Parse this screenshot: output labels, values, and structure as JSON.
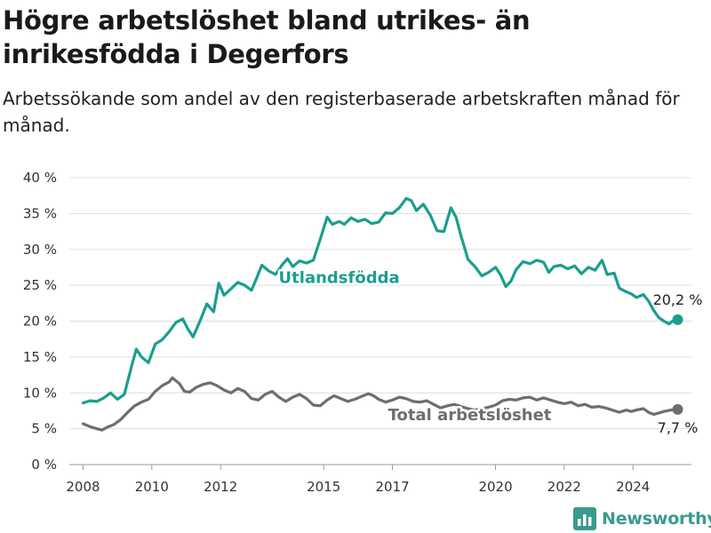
{
  "header": {
    "title": "Högre arbetslöshet bland utrikes- än inrikesfödda i Degerfors",
    "subtitle": "Arbetssökande som andel av den registerbaserade arbetskraften månad för månad."
  },
  "brand": {
    "name": "Newsworthy",
    "icon": "bar-chart-logo-icon",
    "color": "#3a9a8e"
  },
  "chart_data": {
    "type": "line",
    "title": "",
    "xlabel": "",
    "ylabel": "",
    "ylim": [
      0,
      40
    ],
    "xlim": [
      2007.6,
      2025.7
    ],
    "grid": true,
    "y_ticks": [
      0,
      5,
      10,
      15,
      20,
      25,
      30,
      35,
      40
    ],
    "y_tick_labels": [
      "0 %",
      "5 %",
      "10 %",
      "15 %",
      "20 %",
      "25 %",
      "30 %",
      "35 %",
      "40 %"
    ],
    "x_ticks": [
      2008,
      2010,
      2012,
      2015,
      2017,
      2020,
      2022,
      2024
    ],
    "x_tick_labels": [
      "2008",
      "2010",
      "2012",
      "2015",
      "2017",
      "2020",
      "2022",
      "2024"
    ],
    "series": [
      {
        "name": "Utlandsfödda",
        "color": "#1a9e8f",
        "end_label": "20,2 %",
        "points": [
          [
            2008.0,
            8.6
          ],
          [
            2008.2,
            8.9
          ],
          [
            2008.4,
            8.8
          ],
          [
            2008.6,
            9.3
          ],
          [
            2008.8,
            10.0
          ],
          [
            2009.0,
            9.1
          ],
          [
            2009.2,
            9.8
          ],
          [
            2009.4,
            13.5
          ],
          [
            2009.55,
            16.1
          ],
          [
            2009.7,
            15.0
          ],
          [
            2009.9,
            14.2
          ],
          [
            2010.1,
            16.8
          ],
          [
            2010.3,
            17.4
          ],
          [
            2010.5,
            18.5
          ],
          [
            2010.7,
            19.8
          ],
          [
            2010.9,
            20.3
          ],
          [
            2011.05,
            18.9
          ],
          [
            2011.2,
            17.8
          ],
          [
            2011.4,
            20.0
          ],
          [
            2011.6,
            22.4
          ],
          [
            2011.8,
            21.3
          ],
          [
            2011.95,
            25.3
          ],
          [
            2012.1,
            23.6
          ],
          [
            2012.3,
            24.5
          ],
          [
            2012.5,
            25.4
          ],
          [
            2012.7,
            25.0
          ],
          [
            2012.9,
            24.3
          ],
          [
            2013.05,
            26.0
          ],
          [
            2013.2,
            27.8
          ],
          [
            2013.4,
            27.0
          ],
          [
            2013.6,
            26.5
          ],
          [
            2013.8,
            27.9
          ],
          [
            2013.95,
            28.7
          ],
          [
            2014.1,
            27.6
          ],
          [
            2014.3,
            28.4
          ],
          [
            2014.5,
            28.1
          ],
          [
            2014.7,
            28.5
          ],
          [
            2014.9,
            31.4
          ],
          [
            2015.1,
            34.5
          ],
          [
            2015.25,
            33.5
          ],
          [
            2015.45,
            33.9
          ],
          [
            2015.6,
            33.5
          ],
          [
            2015.8,
            34.4
          ],
          [
            2016.0,
            33.9
          ],
          [
            2016.2,
            34.2
          ],
          [
            2016.4,
            33.6
          ],
          [
            2016.6,
            33.8
          ],
          [
            2016.8,
            35.1
          ],
          [
            2017.0,
            35.0
          ],
          [
            2017.2,
            35.8
          ],
          [
            2017.4,
            37.1
          ],
          [
            2017.55,
            36.8
          ],
          [
            2017.7,
            35.4
          ],
          [
            2017.9,
            36.3
          ],
          [
            2018.1,
            34.8
          ],
          [
            2018.3,
            32.6
          ],
          [
            2018.5,
            32.5
          ],
          [
            2018.7,
            35.8
          ],
          [
            2018.85,
            34.5
          ],
          [
            2019.0,
            31.8
          ],
          [
            2019.2,
            28.6
          ],
          [
            2019.4,
            27.6
          ],
          [
            2019.6,
            26.3
          ],
          [
            2019.8,
            26.8
          ],
          [
            2020.0,
            27.5
          ],
          [
            2020.15,
            26.4
          ],
          [
            2020.3,
            24.8
          ],
          [
            2020.45,
            25.6
          ],
          [
            2020.6,
            27.2
          ],
          [
            2020.8,
            28.3
          ],
          [
            2021.0,
            28.0
          ],
          [
            2021.2,
            28.5
          ],
          [
            2021.4,
            28.2
          ],
          [
            2021.55,
            26.8
          ],
          [
            2021.7,
            27.6
          ],
          [
            2021.9,
            27.8
          ],
          [
            2022.1,
            27.3
          ],
          [
            2022.3,
            27.7
          ],
          [
            2022.5,
            26.6
          ],
          [
            2022.7,
            27.5
          ],
          [
            2022.9,
            27.1
          ],
          [
            2023.1,
            28.5
          ],
          [
            2023.25,
            26.5
          ],
          [
            2023.45,
            26.7
          ],
          [
            2023.6,
            24.6
          ],
          [
            2023.8,
            24.1
          ],
          [
            2023.95,
            23.8
          ],
          [
            2024.1,
            23.3
          ],
          [
            2024.3,
            23.7
          ],
          [
            2024.45,
            22.8
          ],
          [
            2024.6,
            21.5
          ],
          [
            2024.75,
            20.5
          ],
          [
            2024.9,
            20.0
          ],
          [
            2025.05,
            19.6
          ],
          [
            2025.15,
            20.0
          ],
          [
            2025.3,
            20.2
          ]
        ]
      },
      {
        "name": "Total arbetslöshet",
        "color": "#6e6e70",
        "end_label": "7,7 %",
        "points": [
          [
            2008.0,
            5.7
          ],
          [
            2008.2,
            5.3
          ],
          [
            2008.4,
            5.0
          ],
          [
            2008.55,
            4.8
          ],
          [
            2008.7,
            5.2
          ],
          [
            2008.9,
            5.6
          ],
          [
            2009.1,
            6.3
          ],
          [
            2009.3,
            7.3
          ],
          [
            2009.5,
            8.2
          ],
          [
            2009.7,
            8.7
          ],
          [
            2009.9,
            9.1
          ],
          [
            2010.1,
            10.2
          ],
          [
            2010.3,
            11.0
          ],
          [
            2010.5,
            11.5
          ],
          [
            2010.6,
            12.1
          ],
          [
            2010.8,
            11.3
          ],
          [
            2010.95,
            10.2
          ],
          [
            2011.1,
            10.1
          ],
          [
            2011.3,
            10.8
          ],
          [
            2011.5,
            11.2
          ],
          [
            2011.7,
            11.4
          ],
          [
            2011.9,
            11.0
          ],
          [
            2012.1,
            10.4
          ],
          [
            2012.3,
            10.0
          ],
          [
            2012.5,
            10.6
          ],
          [
            2012.7,
            10.2
          ],
          [
            2012.9,
            9.2
          ],
          [
            2013.1,
            9.0
          ],
          [
            2013.3,
            9.8
          ],
          [
            2013.5,
            10.2
          ],
          [
            2013.7,
            9.4
          ],
          [
            2013.9,
            8.8
          ],
          [
            2014.1,
            9.4
          ],
          [
            2014.3,
            9.8
          ],
          [
            2014.5,
            9.2
          ],
          [
            2014.7,
            8.3
          ],
          [
            2014.9,
            8.2
          ],
          [
            2015.1,
            9.0
          ],
          [
            2015.3,
            9.6
          ],
          [
            2015.5,
            9.2
          ],
          [
            2015.7,
            8.8
          ],
          [
            2015.9,
            9.1
          ],
          [
            2016.1,
            9.5
          ],
          [
            2016.3,
            9.9
          ],
          [
            2016.45,
            9.6
          ],
          [
            2016.6,
            9.1
          ],
          [
            2016.8,
            8.7
          ],
          [
            2017.0,
            9.0
          ],
          [
            2017.2,
            9.4
          ],
          [
            2017.4,
            9.2
          ],
          [
            2017.6,
            8.8
          ],
          [
            2017.8,
            8.7
          ],
          [
            2018.0,
            8.9
          ],
          [
            2018.2,
            8.4
          ],
          [
            2018.4,
            7.9
          ],
          [
            2018.6,
            8.2
          ],
          [
            2018.8,
            8.4
          ],
          [
            2019.0,
            8.1
          ],
          [
            2019.2,
            7.8
          ],
          [
            2019.4,
            7.6
          ],
          [
            2019.6,
            7.8
          ],
          [
            2019.8,
            8.0
          ],
          [
            2020.0,
            8.3
          ],
          [
            2020.2,
            8.9
          ],
          [
            2020.4,
            9.1
          ],
          [
            2020.6,
            9.0
          ],
          [
            2020.8,
            9.3
          ],
          [
            2021.0,
            9.4
          ],
          [
            2021.2,
            9.0
          ],
          [
            2021.4,
            9.3
          ],
          [
            2021.6,
            9.0
          ],
          [
            2021.8,
            8.7
          ],
          [
            2022.0,
            8.5
          ],
          [
            2022.2,
            8.7
          ],
          [
            2022.4,
            8.2
          ],
          [
            2022.6,
            8.4
          ],
          [
            2022.8,
            8.0
          ],
          [
            2023.0,
            8.1
          ],
          [
            2023.2,
            7.9
          ],
          [
            2023.4,
            7.6
          ],
          [
            2023.6,
            7.3
          ],
          [
            2023.8,
            7.6
          ],
          [
            2023.95,
            7.4
          ],
          [
            2024.1,
            7.6
          ],
          [
            2024.3,
            7.8
          ],
          [
            2024.45,
            7.3
          ],
          [
            2024.6,
            7.0
          ],
          [
            2024.75,
            7.2
          ],
          [
            2024.9,
            7.4
          ],
          [
            2025.1,
            7.6
          ],
          [
            2025.3,
            7.7
          ]
        ]
      }
    ],
    "inline_labels": [
      "Utlandsfödda",
      "Total arbetslöshet"
    ]
  }
}
